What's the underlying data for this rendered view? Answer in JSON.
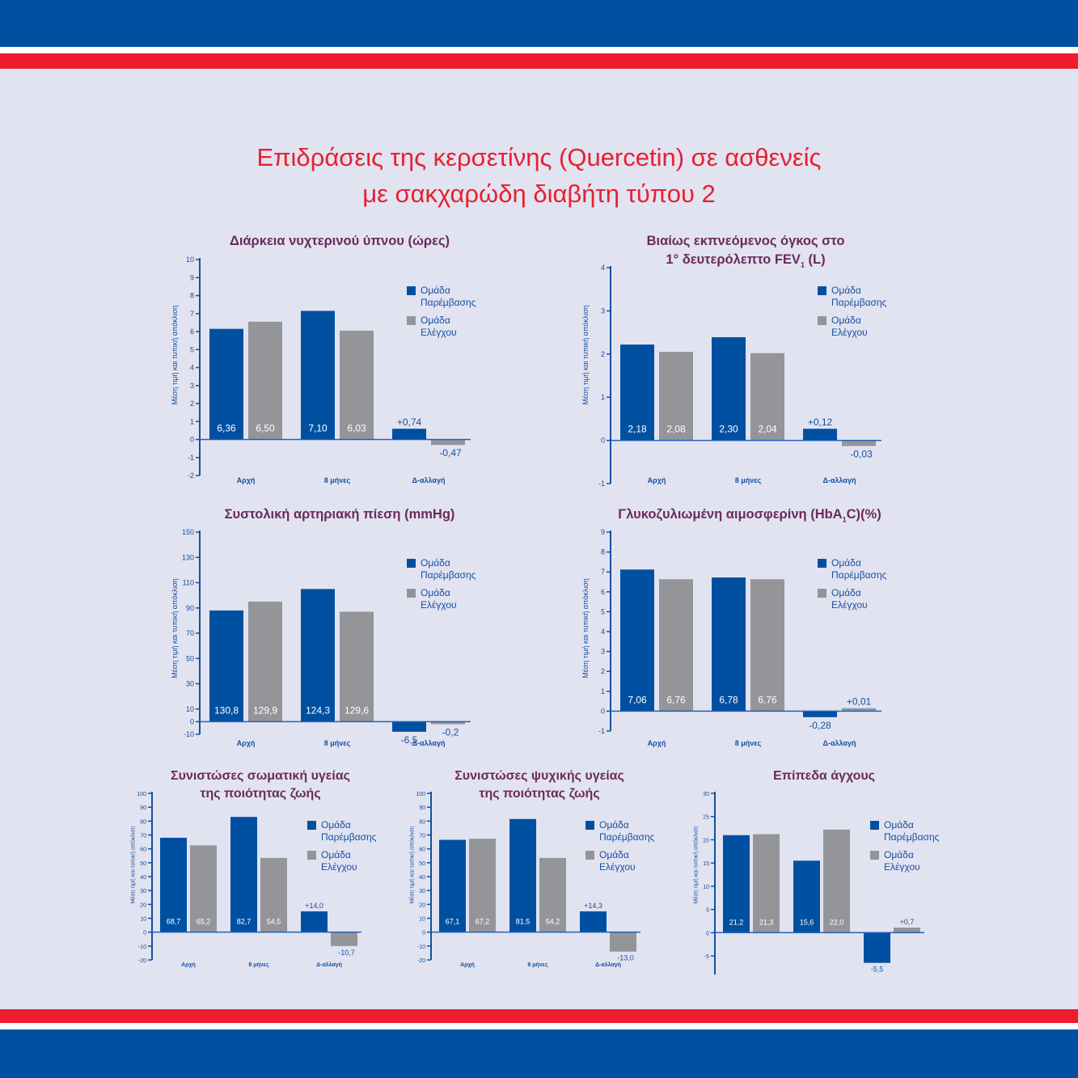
{
  "title_lines": [
    "Επιδράσεις της κερσετίνης (Quercetin) σε ασθενείς",
    "με σακχαρώδη διαβήτη τύπου 2"
  ],
  "colors": {
    "top_band": "#0050a2",
    "red_band": "#ed1c2e",
    "background": "#e2e3f1",
    "intervention": "#0050a2",
    "control": "#939598",
    "title": "#e8202f",
    "chart_title": "#6a2b5c",
    "axis": "#1450a0"
  },
  "legend": {
    "intervention_1": "Ομάδα",
    "intervention_2": "Παρέμβασης",
    "control_1": "Ομάδα",
    "control_2": "Ελέγχου"
  },
  "ylabel": "Μέση τιμή και τυπική απόκλιση",
  "chart_data": [
    {
      "type": "bar",
      "title_lines": [
        "Διάρκεια νυχτερινού ύπνου (ώρες)"
      ],
      "categories": [
        "Αρχή",
        "8 μήνες",
        "Δ-αλλαγή"
      ],
      "series": [
        {
          "name": "Ομάδα Παρέμβασης",
          "labels": [
            "6,36",
            "7,10",
            "+0,74"
          ],
          "values": [
            6.36,
            7.1,
            0.74
          ],
          "bar_levels": [
            6.15,
            7.15,
            0.6
          ]
        },
        {
          "name": "Ομάδα Ελέγχου",
          "labels": [
            "6,50",
            "6,03",
            "-0,47"
          ],
          "values": [
            6.5,
            6.03,
            -0.47
          ],
          "bar_levels": [
            6.55,
            6.05,
            -0.3
          ]
        }
      ],
      "ylim": [
        -2,
        10
      ],
      "yticks": [
        -2,
        -1,
        0,
        1,
        2,
        3,
        4,
        5,
        6,
        7,
        8,
        9,
        10
      ],
      "legend": "top-right"
    },
    {
      "type": "bar",
      "title_lines": [
        "Βιαίως εκπνεόμενος όγκος στο",
        "1° δευτερόλεπτο FEV",
        "1",
        " (L)"
      ],
      "categories": [
        "Αρχή",
        "8 μήνες",
        "Δ-αλλαγή"
      ],
      "series": [
        {
          "name": "Ομάδα Παρέμβασης",
          "labels": [
            "2,18",
            "2,30",
            "+0,12"
          ],
          "values": [
            2.18,
            2.3,
            0.12
          ],
          "bar_levels": [
            2.22,
            2.39,
            0.27
          ]
        },
        {
          "name": "Ομάδα Ελέγχου",
          "labels": [
            "2,08",
            "2,04",
            "-0,03"
          ],
          "values": [
            2.08,
            2.04,
            -0.03
          ],
          "bar_levels": [
            2.05,
            2.02,
            -0.13
          ]
        }
      ],
      "ylim": [
        -1,
        4
      ],
      "yticks": [
        -1,
        0,
        1,
        2,
        3,
        4
      ],
      "legend": "top-right"
    },
    {
      "type": "bar",
      "title_lines": [
        "Συστολική αρτηριακή πίεση (mmHg)"
      ],
      "categories": [
        "Αρχή",
        "8 μήνες",
        "Δ-αλλαγή"
      ],
      "series": [
        {
          "name": "Ομάδα Παρέμβασης",
          "labels": [
            "130,8",
            "124,3",
            "-6,5"
          ],
          "values": [
            130.8,
            124.3,
            -6.5
          ],
          "bar_levels": [
            88,
            105,
            -8
          ]
        },
        {
          "name": "Ομάδα Ελέγχου",
          "labels": [
            "129,9",
            "129,6",
            "-0,2"
          ],
          "values": [
            129.9,
            129.6,
            -0.2
          ],
          "bar_levels": [
            95,
            87,
            -2
          ]
        }
      ],
      "ylim": [
        -10,
        150
      ],
      "yticks": [
        -10,
        0,
        10,
        30,
        50,
        70,
        90,
        110,
        130,
        150
      ],
      "legend": "top-right"
    },
    {
      "type": "bar",
      "title_lines": [
        "Γλυκοζυλιωμένη αιμοσφερίνη (HbA",
        "1",
        "C)(%)"
      ],
      "categories": [
        "Αρχή",
        "8 μήνες",
        "Δ-αλλαγή"
      ],
      "series": [
        {
          "name": "Ομάδα Παρέμβασης",
          "labels": [
            "7,06",
            "6,78",
            "-0,28"
          ],
          "values": [
            7.06,
            6.78,
            -0.28
          ],
          "bar_levels": [
            7.12,
            6.72,
            -0.3
          ]
        },
        {
          "name": "Ομάδα Ελέγχου",
          "labels": [
            "6,76",
            "6,76",
            "+0,01"
          ],
          "values": [
            6.76,
            6.76,
            0.01
          ],
          "bar_levels": [
            6.63,
            6.63,
            0.15
          ]
        }
      ],
      "ylim": [
        -1,
        9
      ],
      "yticks": [
        -1,
        0,
        1,
        2,
        3,
        4,
        5,
        6,
        7,
        8,
        9
      ],
      "legend": "top-right"
    },
    {
      "type": "bar",
      "title_lines": [
        "Συνιστώσες σωματική υγείας",
        "της ποιότητας ζωής"
      ],
      "categories": [
        "Αρχή",
        "8 μήνες",
        "Δ-αλλαγή"
      ],
      "series": [
        {
          "name": "Ομάδα Παρέμβασης",
          "labels": [
            "68,7",
            "82,7",
            "+14,0"
          ],
          "values": [
            68.7,
            82.7,
            14.0
          ],
          "bar_levels": [
            68,
            83,
            15
          ]
        },
        {
          "name": "Ομάδα Ελέγχου",
          "labels": [
            "65,2",
            "54,5",
            "-10,7"
          ],
          "values": [
            65.2,
            54.5,
            -10.7
          ],
          "bar_levels": [
            62.5,
            53.5,
            -10
          ]
        }
      ],
      "ylim": [
        -20,
        100
      ],
      "yticks": [
        -20,
        -10,
        0,
        10,
        20,
        30,
        40,
        50,
        60,
        70,
        80,
        90,
        100
      ],
      "legend": "top-right"
    },
    {
      "type": "bar",
      "title_lines": [
        "Συνιστώσες ψυχικής υγείας",
        "της ποιότητας ζωής"
      ],
      "categories": [
        "Αρχή",
        "8 μήνες",
        "Δ-αλλαγή"
      ],
      "series": [
        {
          "name": "Ομάδα Παρέμβασης",
          "labels": [
            "67,1",
            "81,5",
            "+14,3"
          ],
          "values": [
            67.1,
            81.5,
            14.3
          ],
          "bar_levels": [
            66.5,
            81.5,
            15
          ]
        },
        {
          "name": "Ομάδα Ελέγχου",
          "labels": [
            "67,2",
            "54,2",
            "-13,0"
          ],
          "values": [
            67.2,
            54.2,
            -13.0
          ],
          "bar_levels": [
            67.3,
            53.5,
            -14
          ]
        }
      ],
      "ylim": [
        -20,
        100
      ],
      "yticks": [
        -20,
        -10,
        0,
        10,
        20,
        30,
        40,
        50,
        60,
        70,
        80,
        90,
        100
      ],
      "legend": "top-right"
    },
    {
      "type": "bar",
      "title_lines": [
        "Επίπεδα άγχους"
      ],
      "categories": [
        "",
        "",
        ""
      ],
      "series": [
        {
          "name": "Ομάδα Παρέμβασης",
          "labels": [
            "21,2",
            "15,6",
            "-5,5"
          ],
          "values": [
            21.2,
            15.6,
            -5.5
          ],
          "bar_levels": [
            21,
            15.5,
            -6.5
          ]
        },
        {
          "name": "Ομάδα Ελέγχου",
          "labels": [
            "21,3",
            "22,0",
            "+0,7"
          ],
          "values": [
            21.3,
            22.0,
            0.7
          ],
          "bar_levels": [
            21.2,
            22.2,
            1.1
          ]
        }
      ],
      "ylim": [
        -9,
        30
      ],
      "yticks": [
        -5,
        0,
        5,
        10,
        15,
        20,
        25,
        30
      ],
      "legend": "top-right"
    }
  ]
}
